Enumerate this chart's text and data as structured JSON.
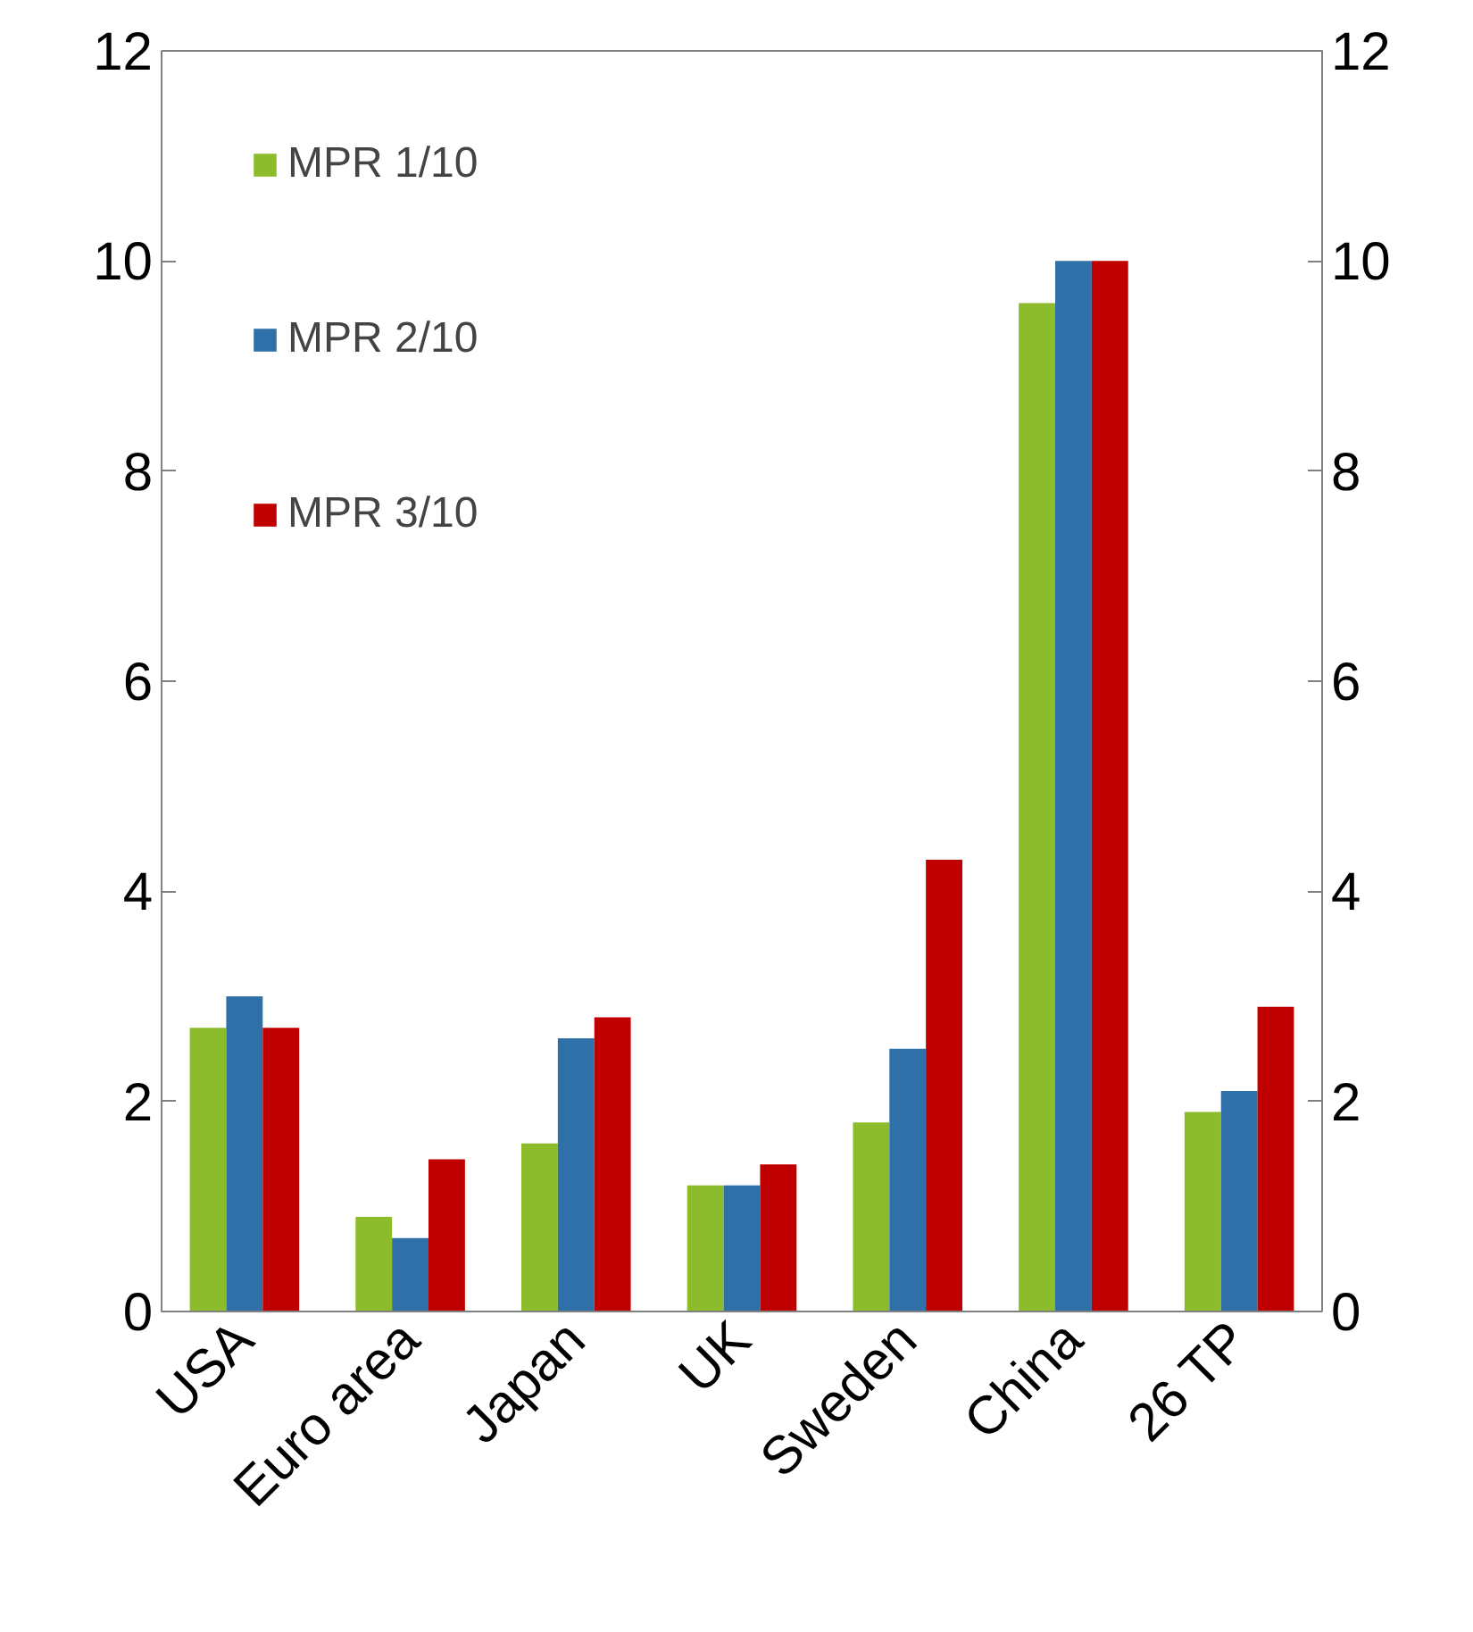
{
  "chart_data": {
    "type": "bar",
    "categories": [
      "USA",
      "Euro area",
      "Japan",
      "UK",
      "Sweden",
      "China",
      "26 TP"
    ],
    "series": [
      {
        "name": "MPR 1/10",
        "color": "#8cbb2c",
        "values": [
          2.7,
          0.9,
          1.6,
          1.2,
          1.8,
          9.6,
          1.9
        ]
      },
      {
        "name": "MPR 2/10",
        "color": "#3070a8",
        "values": [
          3.0,
          0.7,
          2.6,
          1.2,
          2.5,
          10.0,
          2.1
        ]
      },
      {
        "name": "MPR 3/10",
        "color": "#c00000",
        "values": [
          2.7,
          1.45,
          2.8,
          1.4,
          4.3,
          10.0,
          2.9
        ]
      }
    ],
    "ylim": [
      0,
      12
    ],
    "yticks": [
      0,
      2,
      4,
      6,
      8,
      10,
      12
    ],
    "y2lim": [
      0,
      12
    ],
    "y2ticks": [
      0,
      2,
      4,
      6,
      8,
      10,
      12
    ],
    "grid": false,
    "legend": "top left"
  }
}
